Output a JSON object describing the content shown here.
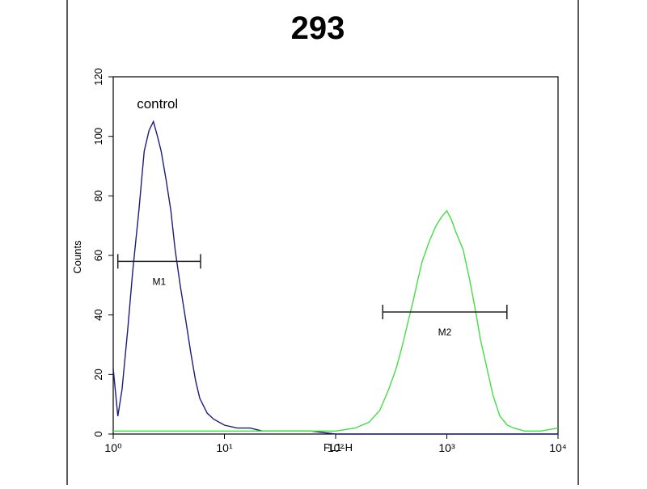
{
  "chart_data": {
    "type": "histogram-overlay",
    "title": "293",
    "x_label": "FL1-H",
    "y_label": "Counts",
    "log_x": true,
    "xlim": [
      1,
      10000
    ],
    "xticks": [
      {
        "value": 1,
        "label": "10⁰"
      },
      {
        "value": 10,
        "label": "10¹"
      },
      {
        "value": 100,
        "label": "10²"
      },
      {
        "value": 1000,
        "label": "10³"
      },
      {
        "value": 10000,
        "label": "10⁴"
      }
    ],
    "ylim": [
      0,
      120
    ],
    "yticks": [
      0,
      20,
      40,
      60,
      80,
      100,
      120
    ],
    "grid": false,
    "series": [
      {
        "name": "control",
        "color": "#1c1c7a",
        "x": [
          1,
          1.1,
          1.2,
          1.35,
          1.5,
          1.7,
          1.9,
          2.1,
          2.3,
          2.5,
          2.7,
          3.0,
          3.3,
          3.6,
          4,
          4.5,
          5,
          5.5,
          6,
          7,
          8,
          10,
          13,
          17,
          22,
          30,
          40,
          60,
          100,
          200,
          500,
          1000,
          3000,
          10000
        ],
        "values": [
          22,
          6,
          15,
          35,
          55,
          75,
          95,
          102,
          105,
          100,
          95,
          85,
          75,
          62,
          50,
          38,
          27,
          18,
          12,
          7,
          5,
          3,
          2,
          2,
          1,
          1,
          1,
          1,
          0,
          0,
          0,
          0,
          0,
          0
        ]
      },
      {
        "color": "#44dd44",
        "x": [
          1,
          10,
          50,
          100,
          150,
          200,
          250,
          300,
          350,
          400,
          450,
          500,
          550,
          600,
          700,
          800,
          900,
          1000,
          1100,
          1200,
          1400,
          1600,
          1800,
          2000,
          2300,
          2600,
          3000,
          3500,
          4000,
          5000,
          7000,
          10000
        ],
        "values": [
          1,
          1,
          1,
          1,
          2,
          4,
          8,
          15,
          22,
          30,
          38,
          45,
          52,
          58,
          65,
          70,
          73,
          75,
          72,
          68,
          62,
          52,
          42,
          32,
          22,
          13,
          6,
          3,
          2,
          1,
          1,
          2
        ]
      }
    ],
    "markers": [
      {
        "label": "M1",
        "x": [
          1.1,
          6.1
        ],
        "y": 58
      },
      {
        "label": "M2",
        "x": [
          265,
          3470
        ],
        "y": 41
      }
    ],
    "annotations": [
      {
        "text": "control",
        "x": 2.5,
        "y": 111
      }
    ]
  }
}
